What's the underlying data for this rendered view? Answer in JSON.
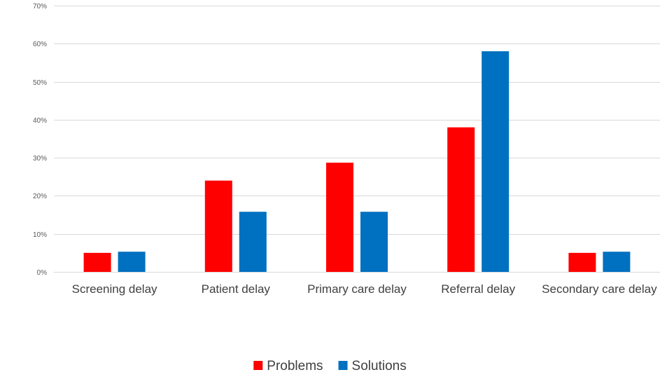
{
  "chart_data": {
    "type": "bar",
    "title": "",
    "xlabel": "",
    "ylabel": "",
    "categories": [
      "Screening delay",
      "Patient delay",
      "Primary care delay",
      "Referral delay",
      "Secondary care delay"
    ],
    "series": [
      {
        "name": "Problems",
        "color": "#ff0000",
        "values": [
          5,
          24,
          28.7,
          38,
          5
        ]
      },
      {
        "name": "Solutions",
        "color": "#0070c0",
        "values": [
          5.3,
          15.8,
          15.8,
          58,
          5.3
        ]
      }
    ],
    "ylim": [
      0,
      70
    ],
    "yticks": [
      0,
      10,
      20,
      30,
      40,
      50,
      60,
      70
    ],
    "ytick_labels": [
      "0%",
      "10%",
      "20%",
      "30%",
      "40%",
      "50%",
      "60%",
      "70%"
    ],
    "grid": true,
    "legend_position": "bottom"
  }
}
